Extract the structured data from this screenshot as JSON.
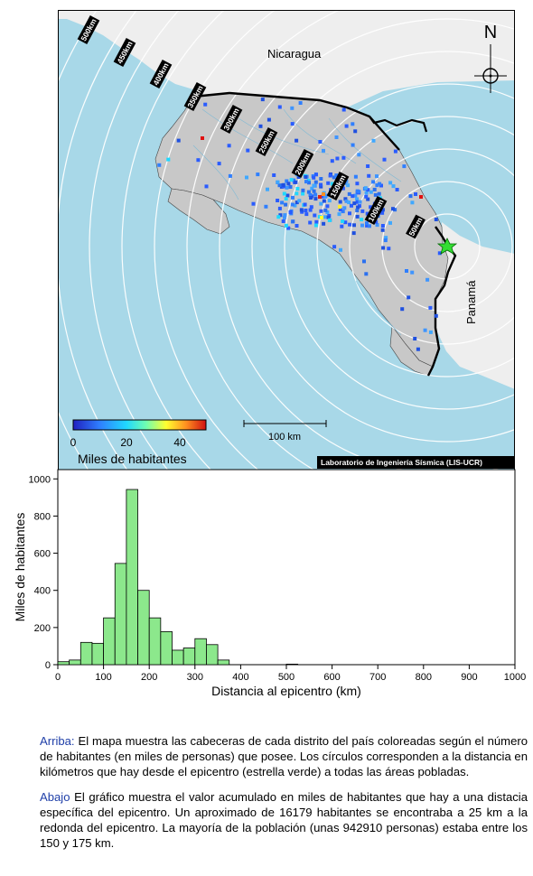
{
  "map": {
    "countries": {
      "north": "Nicaragua",
      "south": "Panamá"
    },
    "north_arrow_label": "N",
    "ring_labels": [
      "50km",
      "100km",
      "150km",
      "200km",
      "250km",
      "300km",
      "350km",
      "400km",
      "450km",
      "500km"
    ],
    "scale_bar_label": "100 km",
    "colorbar": {
      "ticks": [
        "0",
        "20",
        "40"
      ],
      "title": "Miles de habitantes"
    },
    "credit": "Laboratorio de Ingeniería Sísmica (LIS-UCR)",
    "colors": {
      "sea": "#a8d8e8",
      "land": "#c8c8c8",
      "foreign_land": "#eeeeee",
      "rings": "#ffffff",
      "border": "#000000",
      "epicenter": "#33dd33"
    },
    "epicenter_icon": "star-icon",
    "north_arrow_icon": "compass-icon"
  },
  "chart_data": {
    "type": "bar",
    "xlabel": "Distancia al epicentro (km)",
    "ylabel": "Miles de habitantes",
    "xlim": [
      0,
      1000
    ],
    "ylim": [
      0,
      1050
    ],
    "x_ticks": [
      0,
      100,
      200,
      300,
      400,
      500,
      600,
      700,
      800,
      900,
      1000
    ],
    "y_ticks": [
      0,
      200,
      400,
      600,
      800,
      1000
    ],
    "bin_width": 25,
    "bins": [
      {
        "start": 0,
        "value": 16
      },
      {
        "start": 25,
        "value": 25
      },
      {
        "start": 50,
        "value": 120
      },
      {
        "start": 75,
        "value": 115
      },
      {
        "start": 100,
        "value": 252
      },
      {
        "start": 125,
        "value": 545
      },
      {
        "start": 150,
        "value": 943
      },
      {
        "start": 175,
        "value": 400
      },
      {
        "start": 200,
        "value": 252
      },
      {
        "start": 225,
        "value": 178
      },
      {
        "start": 250,
        "value": 78
      },
      {
        "start": 275,
        "value": 90
      },
      {
        "start": 300,
        "value": 140
      },
      {
        "start": 325,
        "value": 108
      },
      {
        "start": 350,
        "value": 25
      },
      {
        "start": 500,
        "value": 3
      }
    ],
    "bar_color": "#8ce88c"
  },
  "caption": {
    "top_label": "Arriba:",
    "top_text": " El mapa muestra las cabeceras de cada distrito del país coloreadas según el número de habitantes (en miles de personas) que posee.  Los círculos corresponden a la distancia en kilómetros que hay desde el epicentro (estrella verde) a todas las áreas pobladas.",
    "bottom_label": "Abajo",
    "bottom_text": " El gráfico muestra el valor acumulado en miles de habitantes que hay a una distacia específica del epicentro.  Un aproximado de 16179 habitantes se encontraba a 25 km a la redonda del epicentro.  La mayoría de la población (unas 942910 personas) estaba entre los 150 y 175 km."
  }
}
